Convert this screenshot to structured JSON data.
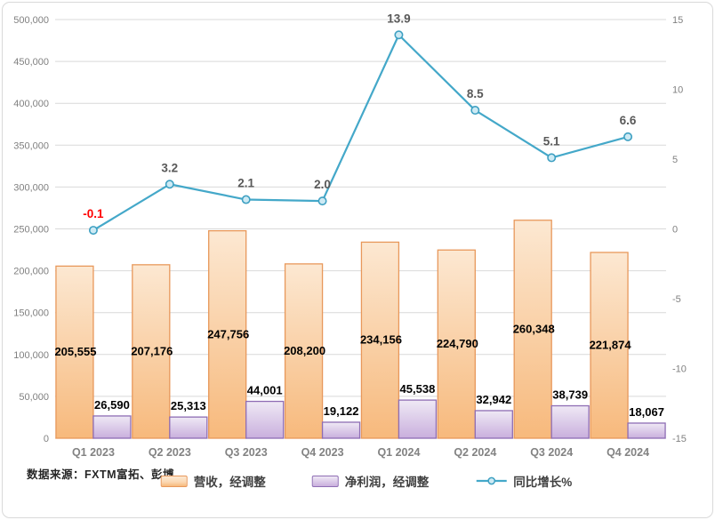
{
  "source_note": "数据来源：FXTM富拓、彭博",
  "colors": {
    "frame_border": "#D9D9D9",
    "grid": "#D9D9D9",
    "axis_text": "#808080",
    "x_label_text": "#828282",
    "bar_label": "#000000",
    "line": "#44A8C9",
    "marker_fill": "#CDEAF4",
    "marker_stroke": "#3EA0C2",
    "line_label": "#595959",
    "negative_line_label": "#FF0000",
    "revenue_fill_top": "#FCE8D2",
    "revenue_fill_bottom": "#F7B97C",
    "revenue_border": "#E8985B",
    "profit_fill_top": "#EFE9F5",
    "profit_fill_bottom": "#C9AFDD",
    "profit_border": "#8E6DB4"
  },
  "chart_data": {
    "type": "combo",
    "title": "",
    "categories": [
      "Q1 2023",
      "Q2 2023",
      "Q3 2023",
      "Q4 2023",
      "Q1 2024",
      "Q2 2024",
      "Q3 2024",
      "Q4 2024"
    ],
    "series": [
      {
        "name": "营收，经调整",
        "type": "bar",
        "axis": "left",
        "values": [
          205555,
          207176,
          247756,
          208200,
          234156,
          224790,
          260348,
          221874
        ],
        "labels": [
          "205,555",
          "207,176",
          "247,756",
          "208,200",
          "234,156",
          "224,790",
          "260,348",
          "221,874"
        ]
      },
      {
        "name": "净利润，经调整",
        "type": "bar",
        "axis": "left",
        "values": [
          26590,
          25313,
          44001,
          19122,
          45538,
          32942,
          38739,
          18067
        ],
        "labels": [
          "26,590",
          "25,313",
          "44,001",
          "19,122",
          "45,538",
          "32,942",
          "38,739",
          "18,067"
        ]
      },
      {
        "name": "同比增长%",
        "type": "line",
        "axis": "right",
        "values": [
          -0.1,
          3.2,
          2.1,
          2.0,
          13.9,
          8.5,
          5.1,
          6.6
        ],
        "labels": [
          "-0.1",
          "3.2",
          "2.1",
          "2.0",
          "13.9",
          "8.5",
          "5.1",
          "6.6"
        ]
      }
    ],
    "left_axis": {
      "min": 0,
      "max": 500000,
      "step": 50000,
      "tick_labels": [
        "0",
        "50,000",
        "100,000",
        "150,000",
        "200,000",
        "250,000",
        "300,000",
        "350,000",
        "400,000",
        "450,000",
        "500,000"
      ]
    },
    "right_axis": {
      "min": -15,
      "max": 15,
      "step": 5,
      "tick_labels": [
        "-15",
        "-10",
        "-5",
        "0",
        "5",
        "10",
        "15"
      ]
    },
    "grid": true,
    "legend_position": "bottom"
  }
}
